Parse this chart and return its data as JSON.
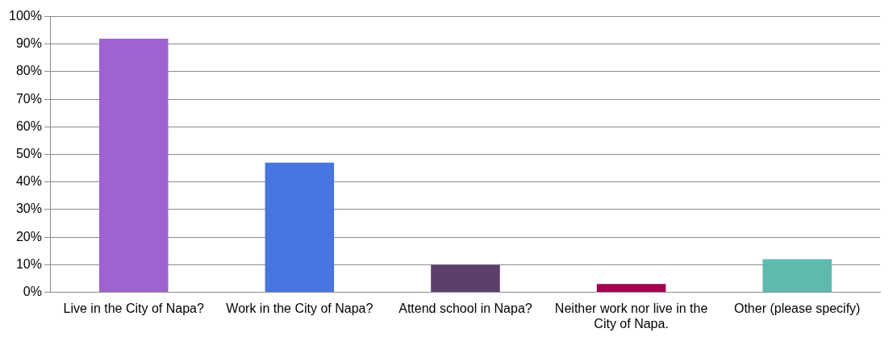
{
  "chart_data": {
    "type": "bar",
    "categories": [
      "Live in the City of Napa?",
      "Work in the City of Napa?",
      "Attend school in Napa?",
      "Neither work nor live in the City of Napa.",
      "Other (please specify)"
    ],
    "values": [
      92,
      47,
      10,
      3,
      12
    ],
    "colors": [
      "#a062d0",
      "#4876e0",
      "#5c3f6b",
      "#a0004f",
      "#5fb9ad"
    ],
    "ylim": [
      0,
      100
    ],
    "yticks": [
      {
        "value": 0,
        "label": "0%"
      },
      {
        "value": 10,
        "label": "10%"
      },
      {
        "value": 20,
        "label": "20%"
      },
      {
        "value": 30,
        "label": "30%"
      },
      {
        "value": 40,
        "label": "40%"
      },
      {
        "value": 50,
        "label": "50%"
      },
      {
        "value": 60,
        "label": "60%"
      },
      {
        "value": 70,
        "label": "70%"
      },
      {
        "value": 80,
        "label": "80%"
      },
      {
        "value": 90,
        "label": "90%"
      },
      {
        "value": 100,
        "label": "100%"
      }
    ],
    "grid": "y",
    "legend": false
  }
}
